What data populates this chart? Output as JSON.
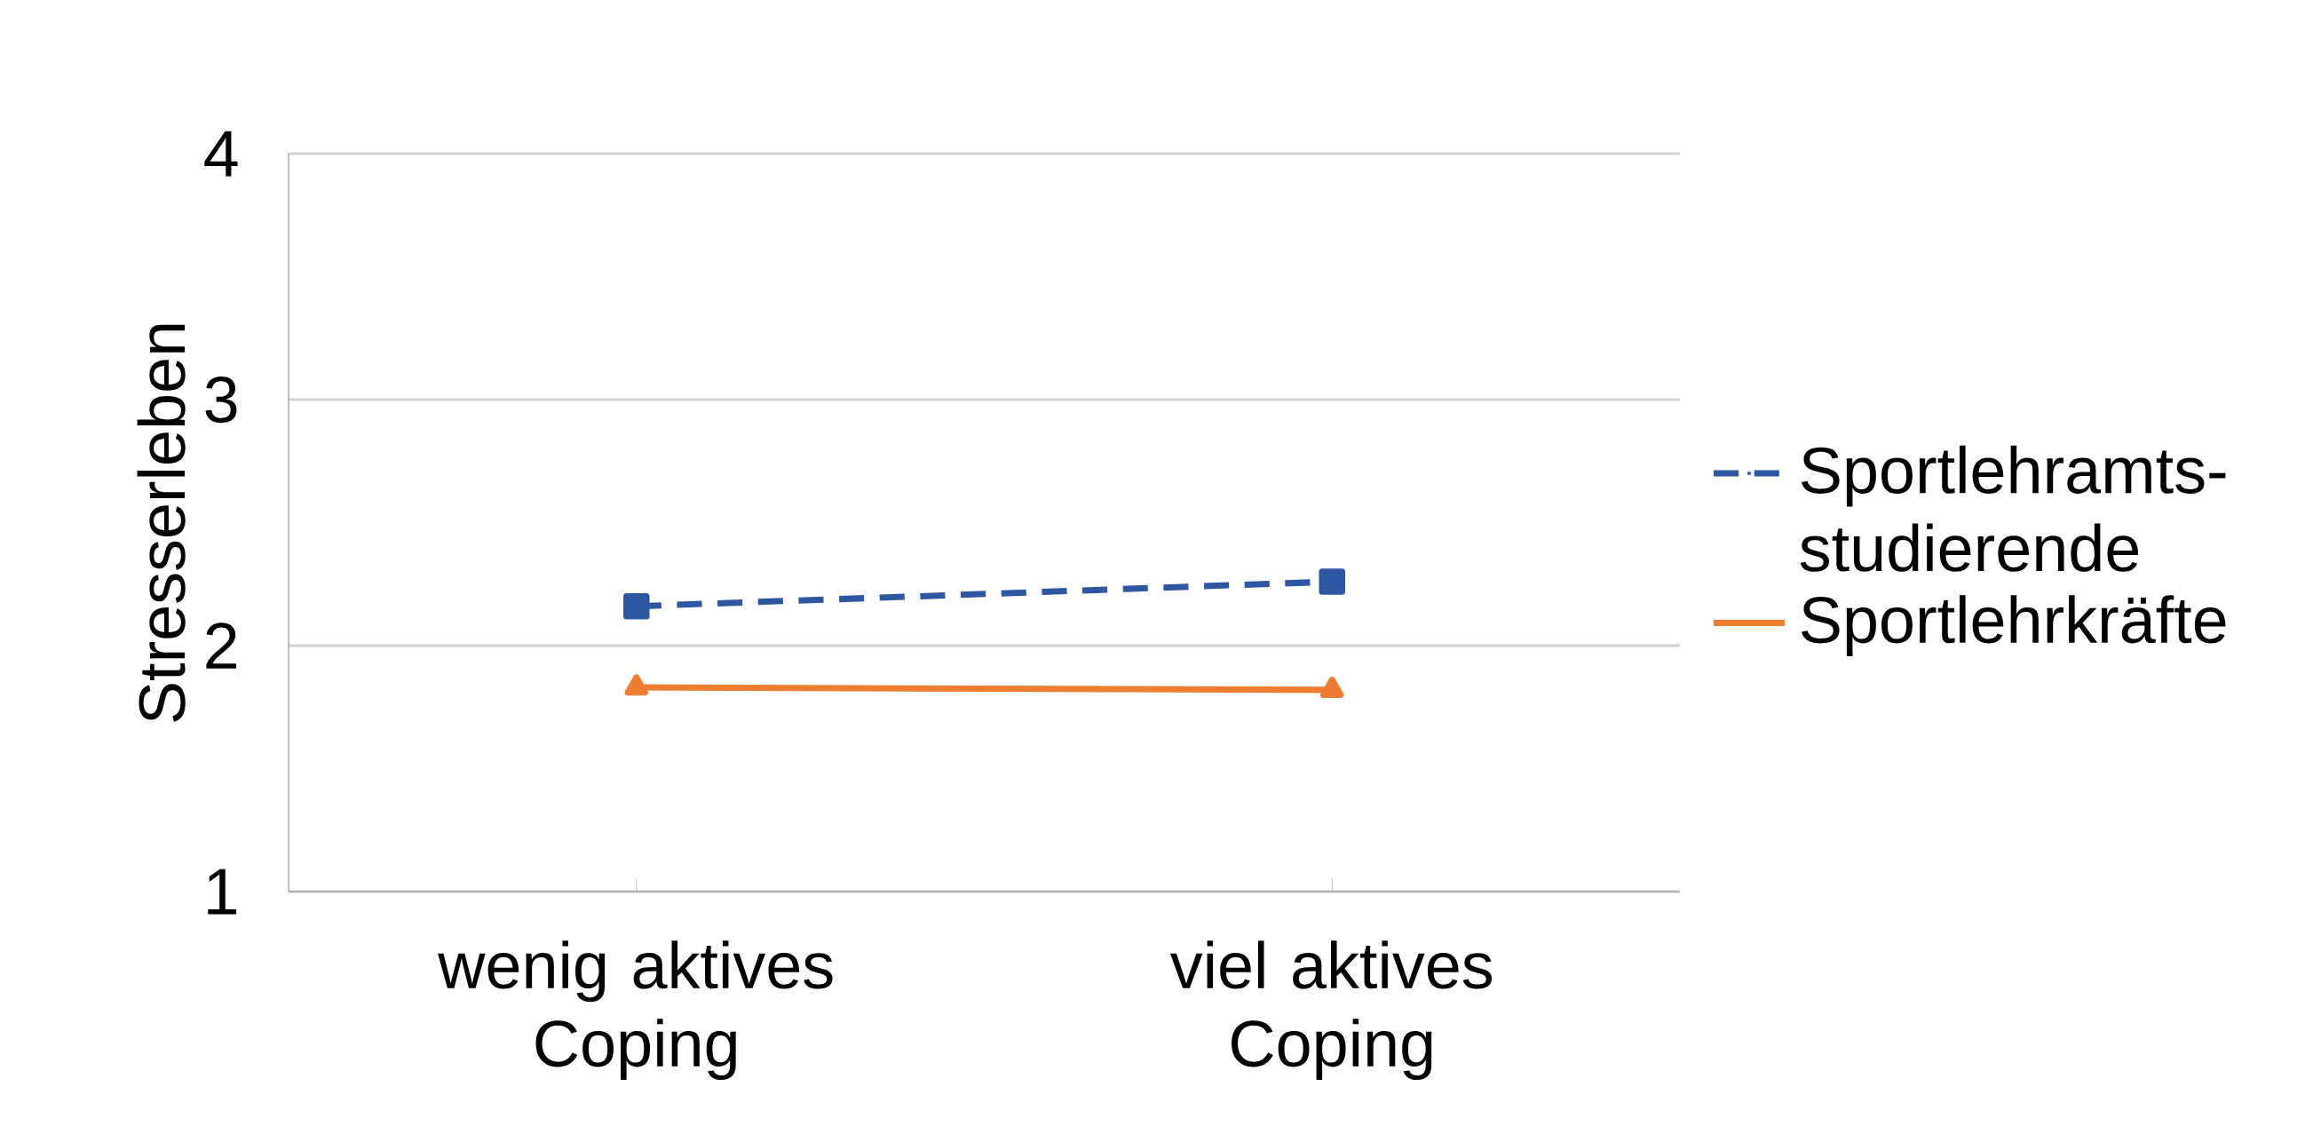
{
  "chart_data": {
    "type": "line",
    "ylabel": "Stresserleben",
    "categories": [
      "wenig aktives Coping",
      "viel aktives Coping"
    ],
    "series": [
      {
        "name": "Sportlehramts-studierende",
        "color": "#2f56a0",
        "values": [
          2.16,
          2.26
        ],
        "marker": "square",
        "line_style": "dashed"
      },
      {
        "name": "Sportlehrkräfte",
        "color": "#ed7d31",
        "values": [
          1.83,
          1.82
        ],
        "marker": "triangle",
        "line_style": "solid"
      }
    ],
    "ylim": [
      1,
      4
    ],
    "yticks": [
      1,
      2,
      3,
      4
    ],
    "grid": "y",
    "legend": "right"
  }
}
